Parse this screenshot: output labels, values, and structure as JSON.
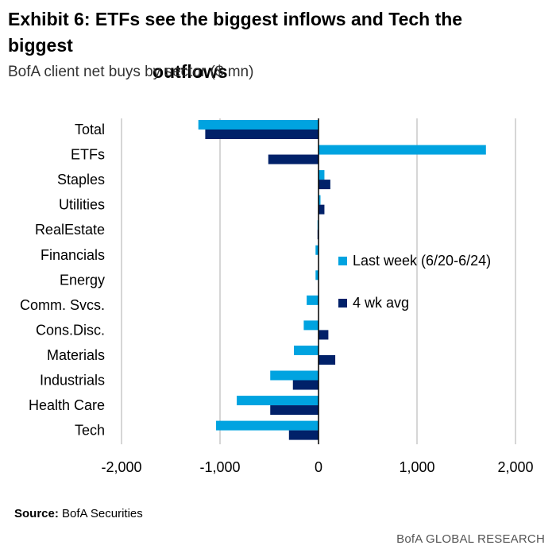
{
  "header": {
    "title_line1": "Exhibit 6: ETFs see the biggest inflows and Tech the biggest",
    "title_line2": "outflows",
    "subtitle": "BofA client net buys by sector ($ mn)"
  },
  "footer": {
    "source_label": "Source:",
    "source_text": "BofA Securities",
    "brand": "BofA GLOBAL RESEARCH"
  },
  "colors": {
    "last_week": "#00A3E0",
    "four_wk_avg": "#012169",
    "grid": "#C8C8C8",
    "axis": "#000000"
  },
  "chart_data": {
    "type": "bar",
    "orientation": "horizontal",
    "title": "Exhibit 6: ETFs see the biggest inflows and Tech the biggest outflows",
    "subtitle": "BofA client net buys by sector ($ mn)",
    "categories": [
      "Total",
      "ETFs",
      "Staples",
      "Utilities",
      "RealEstate",
      "Financials",
      "Energy",
      "Comm. Svcs.",
      "Cons.Disc.",
      "Materials",
      "Industrials",
      "Health Care",
      "Tech"
    ],
    "series": [
      {
        "name": "Last week (6/20-6/24)",
        "values": [
          -1220,
          1700,
          60,
          20,
          -10,
          -30,
          -30,
          -120,
          -150,
          -250,
          -490,
          -830,
          -1040
        ]
      },
      {
        "name": "4 wk avg",
        "values": [
          -1150,
          -510,
          120,
          60,
          -10,
          0,
          0,
          0,
          100,
          170,
          -260,
          -490,
          -300
        ]
      }
    ],
    "xlim": [
      -2000,
      2000
    ],
    "xticks": [
      -2000,
      -1000,
      0,
      1000,
      2000
    ],
    "xtick_labels": [
      "-2,000",
      "-1,000",
      "0",
      "1,000",
      "2,000"
    ],
    "grid": "vertical",
    "legend_position": "center-right"
  }
}
